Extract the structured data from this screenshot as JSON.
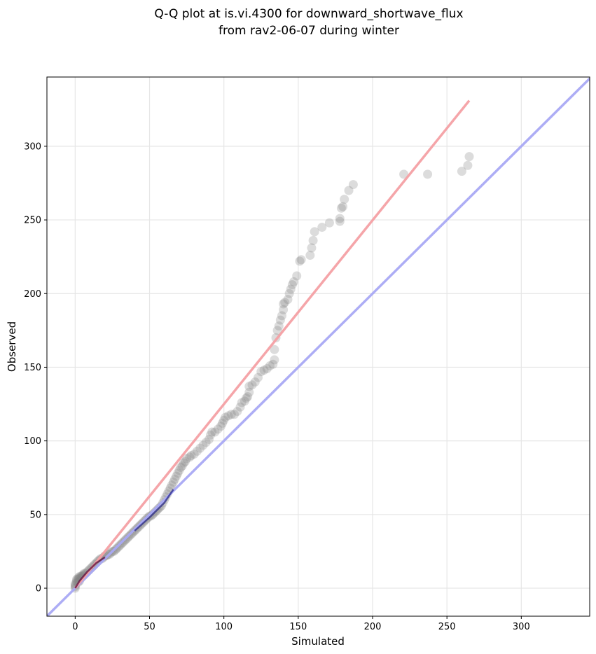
{
  "chart_data": {
    "type": "scatter",
    "title": [
      "Q-Q plot at is.vi.4300 for downward_shortwave_flux",
      "from rav2-06-07 during winter"
    ],
    "xlabel": "Simulated",
    "ylabel": "Observed",
    "xlim": [
      -19,
      346
    ],
    "ylim": [
      -19,
      347
    ],
    "xticks": [
      0,
      50,
      100,
      150,
      200,
      250,
      300
    ],
    "yticks": [
      0,
      50,
      100,
      150,
      200,
      250,
      300
    ],
    "xtick_labels": [
      "0",
      "50",
      "100",
      "150",
      "200",
      "250",
      "300"
    ],
    "ytick_labels": [
      "0",
      "50",
      "100",
      "150",
      "200",
      "250",
      "300"
    ],
    "grid": true,
    "points_color": "#808080",
    "regression_line": {
      "color": "#f4a0a4",
      "from": [
        0,
        0
      ],
      "to": [
        265,
        331
      ]
    },
    "identity_line": {
      "color": "#a9a9f4",
      "from": [
        -19,
        -19
      ],
      "to": [
        346,
        346
      ]
    },
    "highlight_color": "#2a2a8a",
    "points": [
      [
        0,
        0
      ],
      [
        0,
        1
      ],
      [
        0,
        2
      ],
      [
        0,
        3
      ],
      [
        1,
        4
      ],
      [
        1,
        5
      ],
      [
        1,
        6
      ],
      [
        2,
        4
      ],
      [
        2,
        6
      ],
      [
        2,
        7
      ],
      [
        3,
        5
      ],
      [
        3,
        7
      ],
      [
        3,
        8
      ],
      [
        4,
        7
      ],
      [
        4,
        8
      ],
      [
        5,
        8
      ],
      [
        5,
        9
      ],
      [
        6,
        9
      ],
      [
        6,
        10
      ],
      [
        7,
        10
      ],
      [
        8,
        11
      ],
      [
        9,
        12
      ],
      [
        10,
        13
      ],
      [
        11,
        14
      ],
      [
        12,
        15
      ],
      [
        13,
        16
      ],
      [
        14,
        17
      ],
      [
        15,
        18
      ],
      [
        16,
        19
      ],
      [
        17,
        20
      ],
      [
        18,
        20
      ],
      [
        19,
        21
      ],
      [
        20,
        22
      ],
      [
        21,
        22
      ],
      [
        22,
        23
      ],
      [
        23,
        23
      ],
      [
        24,
        24
      ],
      [
        25,
        25
      ],
      [
        26,
        25
      ],
      [
        27,
        26
      ],
      [
        28,
        27
      ],
      [
        29,
        28
      ],
      [
        30,
        29
      ],
      [
        31,
        30
      ],
      [
        32,
        31
      ],
      [
        33,
        32
      ],
      [
        34,
        33
      ],
      [
        35,
        34
      ],
      [
        36,
        35
      ],
      [
        37,
        36
      ],
      [
        38,
        37
      ],
      [
        39,
        38
      ],
      [
        40,
        39
      ],
      [
        41,
        40
      ],
      [
        42,
        41
      ],
      [
        43,
        42
      ],
      [
        44,
        43
      ],
      [
        45,
        44
      ],
      [
        46,
        45
      ],
      [
        47,
        46
      ],
      [
        48,
        47
      ],
      [
        49,
        48
      ],
      [
        50,
        49
      ],
      [
        51,
        49
      ],
      [
        52,
        50
      ],
      [
        53,
        51
      ],
      [
        54,
        52
      ],
      [
        55,
        53
      ],
      [
        56,
        54
      ],
      [
        57,
        55
      ],
      [
        58,
        56
      ],
      [
        59,
        58
      ],
      [
        60,
        60
      ],
      [
        61,
        62
      ],
      [
        62,
        64
      ],
      [
        63,
        66
      ],
      [
        64,
        68
      ],
      [
        65,
        70
      ],
      [
        66,
        72
      ],
      [
        67,
        74
      ],
      [
        68,
        76
      ],
      [
        69,
        78
      ],
      [
        70,
        80
      ],
      [
        71,
        82
      ],
      [
        72,
        83
      ],
      [
        73,
        85
      ],
      [
        74,
        86
      ],
      [
        75,
        88
      ],
      [
        77,
        89
      ],
      [
        78,
        90
      ],
      [
        80,
        91
      ],
      [
        82,
        93
      ],
      [
        84,
        95
      ],
      [
        86,
        97
      ],
      [
        88,
        99
      ],
      [
        90,
        101
      ],
      [
        91,
        104
      ],
      [
        92,
        106
      ],
      [
        94,
        106
      ],
      [
        96,
        108
      ],
      [
        98,
        110
      ],
      [
        99,
        112
      ],
      [
        100,
        114
      ],
      [
        101,
        116
      ],
      [
        103,
        117
      ],
      [
        105,
        118
      ],
      [
        107,
        118
      ],
      [
        109,
        120
      ],
      [
        111,
        123
      ],
      [
        112,
        126
      ],
      [
        114,
        127
      ],
      [
        115,
        129
      ],
      [
        116,
        130
      ],
      [
        117,
        133
      ],
      [
        117,
        137
      ],
      [
        119,
        138
      ],
      [
        121,
        140
      ],
      [
        123,
        143
      ],
      [
        125,
        147
      ],
      [
        127,
        148
      ],
      [
        129,
        149
      ],
      [
        131,
        151
      ],
      [
        133,
        152
      ],
      [
        134,
        155
      ],
      [
        134,
        162
      ],
      [
        135,
        170
      ],
      [
        136,
        175
      ],
      [
        137,
        178
      ],
      [
        138,
        182
      ],
      [
        139,
        185
      ],
      [
        140,
        189
      ],
      [
        140,
        193
      ],
      [
        141,
        194
      ],
      [
        143,
        196
      ],
      [
        144,
        200
      ],
      [
        145,
        203
      ],
      [
        146,
        206
      ],
      [
        147,
        208
      ],
      [
        149,
        212
      ],
      [
        151,
        222
      ],
      [
        152,
        223
      ],
      [
        158,
        226
      ],
      [
        159,
        231
      ],
      [
        160,
        236
      ],
      [
        161,
        242
      ],
      [
        166,
        245
      ],
      [
        171,
        248
      ],
      [
        178,
        249
      ],
      [
        178,
        251
      ],
      [
        179,
        258
      ],
      [
        180,
        259
      ],
      [
        181,
        264
      ],
      [
        184,
        270
      ],
      [
        187,
        274
      ],
      [
        221,
        281
      ],
      [
        237,
        281
      ],
      [
        260,
        283
      ],
      [
        264,
        287
      ],
      [
        265,
        293
      ]
    ],
    "highlight_segments": [
      {
        "color": "#5a0a3a",
        "points": [
          [
            0,
            0
          ],
          [
            3,
            5
          ],
          [
            8,
            11
          ],
          [
            14,
            17
          ],
          [
            20,
            21
          ]
        ]
      },
      {
        "color": "#2a2a8a",
        "points": [
          [
            40,
            39
          ],
          [
            50,
            48
          ],
          [
            60,
            58
          ],
          [
            66,
            67
          ]
        ]
      }
    ]
  }
}
